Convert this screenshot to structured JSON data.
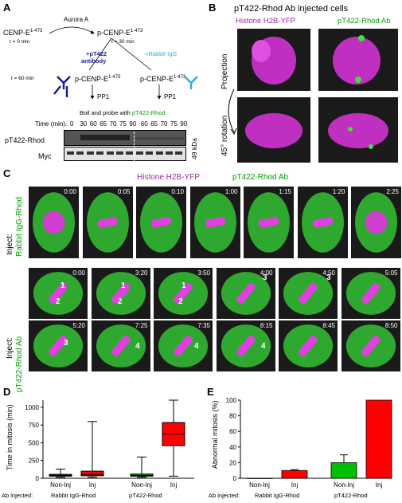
{
  "panelA": {
    "label": "A",
    "cenp_start": "CENP-E",
    "sup": "1-473",
    "t0": "t = 0 min",
    "aurora": "Aurora A",
    "pcenp": "p-CENP-E",
    "t30": "t = 30 min",
    "anti_pt422": "+pT422",
    "antibody": "antibody",
    "rabbit_igg": "+Rabbit IgG",
    "t60": "t = 60 min",
    "pp1": "PP1",
    "boil": "Boil and probe with ",
    "boil_green": "pT422-Rhod",
    "time_label": "Time (min):",
    "times": [
      "0",
      "30",
      "60",
      "65",
      "70",
      "75",
      "90",
      "60",
      "65",
      "70",
      "75",
      "90"
    ],
    "row1": "pT422-Rhod",
    "row2": "Myc",
    "kda": "49 kDa"
  },
  "panelB": {
    "label": "B",
    "title": "pT422-Rhod Ab injected cells",
    "ch1": "Histone H2B-YFP",
    "ch2": "pT422-Rhod Ab",
    "row1": "Projection",
    "row2": "45° rotation"
  },
  "panelC": {
    "label": "C",
    "ch1": "Histone H2B-YFP",
    "ch2": "pT422-Rhod Ab",
    "inject": "Inject:",
    "row1_label": "Rabbit IgG-Rhod",
    "row2_label": "pT422-Rhod Ab",
    "row1_times": [
      "0:00",
      "0:05",
      "0:10",
      "1:00",
      "1:15",
      "1:20",
      "2:25"
    ],
    "row2_times": [
      "0:00",
      "3:20",
      "3:50",
      "4:00",
      "4:50",
      "5:05"
    ],
    "row3_times": [
      "5:20",
      "7:25",
      "7:35",
      "8:15",
      "8:45",
      "8:50"
    ],
    "arrow_numbers": [
      "1",
      "2",
      "1",
      "2",
      "1",
      "2",
      "3",
      "3",
      "3",
      "4",
      "4",
      "4"
    ]
  },
  "panelD": {
    "label": "D",
    "ylabel": "Time in mitosis (min)",
    "ab_injected": "Ab injected:",
    "group1": "Rabbit IgG-Rhod",
    "group2": "pT422-Rhod"
  },
  "panelE": {
    "label": "E",
    "ylabel": "Abnormal mitosis (%)",
    "ab_injected": "Ab injected:",
    "group1": "Rabbit IgG-Rhod",
    "group2": "pT422-Rhod"
  },
  "chart_data": [
    {
      "type": "box",
      "categories": [
        "Non-Inj",
        "Inj",
        "Non-Inj",
        "Inj"
      ],
      "ylim": [
        0,
        1100
      ],
      "yticks": [
        0,
        250,
        500,
        750,
        1000
      ],
      "boxes": [
        {
          "min": 15,
          "q1": 30,
          "median": 40,
          "q3": 55,
          "max": 130,
          "color": "#1a1a1a"
        },
        {
          "min": 15,
          "q1": 35,
          "median": 55,
          "q3": 100,
          "max": 800,
          "color": "#ff0000"
        },
        {
          "min": 15,
          "q1": 30,
          "median": 40,
          "q3": 60,
          "max": 300,
          "color": "#00b000"
        },
        {
          "min": 30,
          "q1": 460,
          "median": 625,
          "q3": 785,
          "max": 1100,
          "color": "#ff0000"
        }
      ]
    },
    {
      "type": "bar",
      "categories": [
        "Non-Inj",
        "Inj",
        "Non-Inj",
        "Inj"
      ],
      "values": [
        0,
        10,
        20,
        100
      ],
      "errors": [
        0,
        1,
        10,
        0
      ],
      "colors": [
        "#888888",
        "#ff0000",
        "#00c000",
        "#ff0000"
      ],
      "ylim": [
        0,
        100
      ],
      "yticks": [
        0,
        20,
        40,
        60,
        80,
        100
      ]
    }
  ]
}
